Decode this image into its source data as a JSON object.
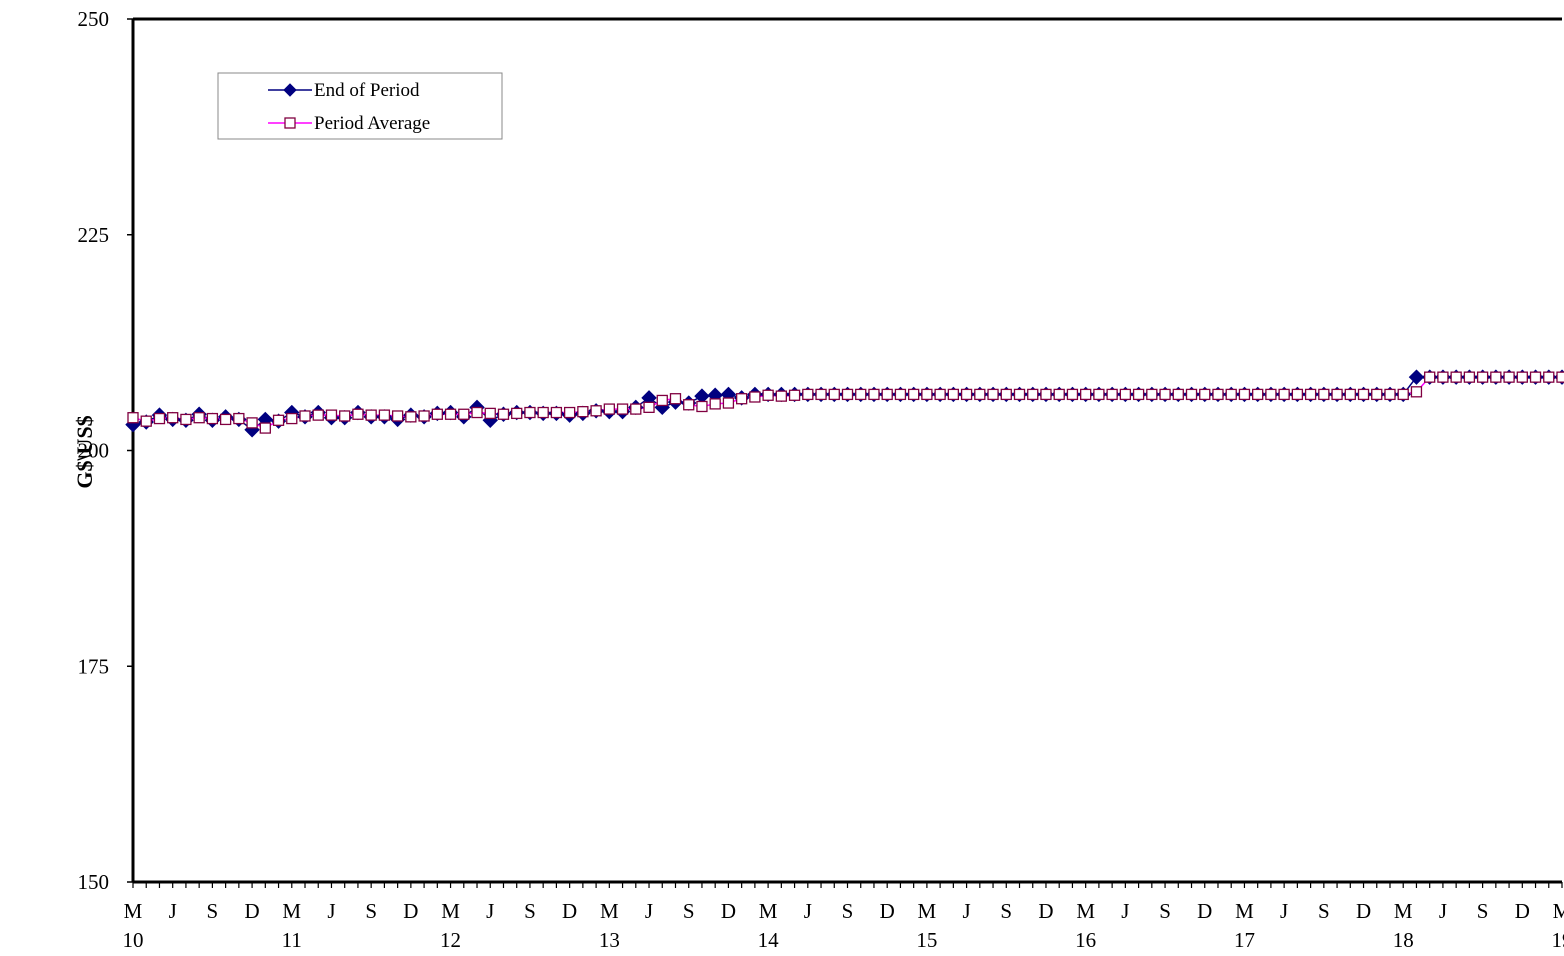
{
  "chart_data": {
    "type": "line",
    "title": "",
    "xlabel": "",
    "ylabel": "G$\\US$",
    "ylim": [
      150,
      250
    ],
    "yticks": [
      150,
      175,
      200,
      225,
      250
    ],
    "grid": false,
    "legend_position": "top-left",
    "x_month_labels": [
      "M",
      "J",
      "S",
      "D",
      "M",
      "J",
      "S",
      "D",
      "M",
      "J",
      "S",
      "D",
      "M",
      "J",
      "S",
      "D",
      "M",
      "J",
      "S",
      "D",
      "M",
      "J",
      "S",
      "D",
      "M",
      "J",
      "S",
      "D",
      "M",
      "J",
      "S",
      "D",
      "M",
      "J",
      "S",
      "D",
      "M"
    ],
    "x_year_labels": [
      {
        "label": "10",
        "index": 0
      },
      {
        "label": "11",
        "index": 12
      },
      {
        "label": "12",
        "index": 24
      },
      {
        "label": "13",
        "index": 36
      },
      {
        "label": "14",
        "index": 48
      },
      {
        "label": "15",
        "index": 60
      },
      {
        "label": "16",
        "index": 72
      },
      {
        "label": "17",
        "index": 84
      },
      {
        "label": "18",
        "index": 96
      },
      {
        "label": "19",
        "index": 108
      }
    ],
    "x_start": "2010-03",
    "x_end": "2019-03",
    "series": [
      {
        "name": "End of Period",
        "color": "#000080",
        "marker": "diamond-filled",
        "values": [
          203.0,
          203.3,
          204.1,
          203.6,
          203.5,
          204.2,
          203.5,
          203.9,
          203.6,
          202.4,
          203.6,
          203.4,
          204.4,
          203.9,
          204.4,
          203.8,
          203.8,
          204.4,
          203.9,
          203.9,
          203.6,
          204.1,
          203.9,
          204.3,
          204.4,
          203.9,
          205.0,
          203.5,
          204.2,
          204.4,
          204.4,
          204.3,
          204.3,
          204.1,
          204.3,
          204.6,
          204.5,
          204.5,
          205.0,
          206.1,
          205.0,
          205.6,
          205.5,
          206.3,
          206.4,
          206.5,
          206.1,
          206.5,
          206.5,
          206.5,
          206.5,
          206.5,
          206.5,
          206.5,
          206.5,
          206.5,
          206.5,
          206.5,
          206.5,
          206.5,
          206.5,
          206.5,
          206.5,
          206.5,
          206.5,
          206.5,
          206.5,
          206.5,
          206.5,
          206.5,
          206.5,
          206.5,
          206.5,
          206.5,
          206.5,
          206.5,
          206.5,
          206.5,
          206.5,
          206.5,
          206.5,
          206.5,
          206.5,
          206.5,
          206.5,
          206.5,
          206.5,
          206.5,
          206.5,
          206.5,
          206.5,
          206.5,
          206.5,
          206.5,
          206.5,
          206.5,
          206.5,
          208.5,
          208.5,
          208.5,
          208.5,
          208.5,
          208.5,
          208.5,
          208.5,
          208.5,
          208.5,
          208.5,
          208.5
        ]
      },
      {
        "name": "Period Average",
        "color": "#ff00ff",
        "marker": "square-open",
        "values": [
          203.8,
          203.4,
          203.7,
          203.8,
          203.6,
          203.8,
          203.7,
          203.6,
          203.7,
          203.2,
          202.6,
          203.5,
          203.7,
          204.0,
          204.1,
          204.1,
          204.0,
          204.2,
          204.1,
          204.1,
          204.0,
          203.9,
          204.0,
          204.2,
          204.2,
          204.2,
          204.4,
          204.3,
          204.2,
          204.3,
          204.4,
          204.4,
          204.4,
          204.4,
          204.5,
          204.6,
          204.8,
          204.8,
          204.8,
          205.0,
          205.8,
          206.0,
          205.3,
          205.1,
          205.4,
          205.5,
          206.0,
          206.2,
          206.4,
          206.3,
          206.4,
          206.5,
          206.5,
          206.5,
          206.5,
          206.5,
          206.5,
          206.5,
          206.5,
          206.5,
          206.5,
          206.5,
          206.5,
          206.5,
          206.5,
          206.5,
          206.5,
          206.5,
          206.5,
          206.5,
          206.5,
          206.5,
          206.5,
          206.5,
          206.5,
          206.5,
          206.5,
          206.5,
          206.5,
          206.5,
          206.5,
          206.5,
          206.5,
          206.5,
          206.5,
          206.5,
          206.5,
          206.5,
          206.5,
          206.5,
          206.5,
          206.5,
          206.5,
          206.5,
          206.5,
          206.5,
          206.5,
          206.8,
          208.5,
          208.5,
          208.5,
          208.5,
          208.5,
          208.5,
          208.5,
          208.5,
          208.5,
          208.5,
          208.5
        ]
      }
    ]
  }
}
